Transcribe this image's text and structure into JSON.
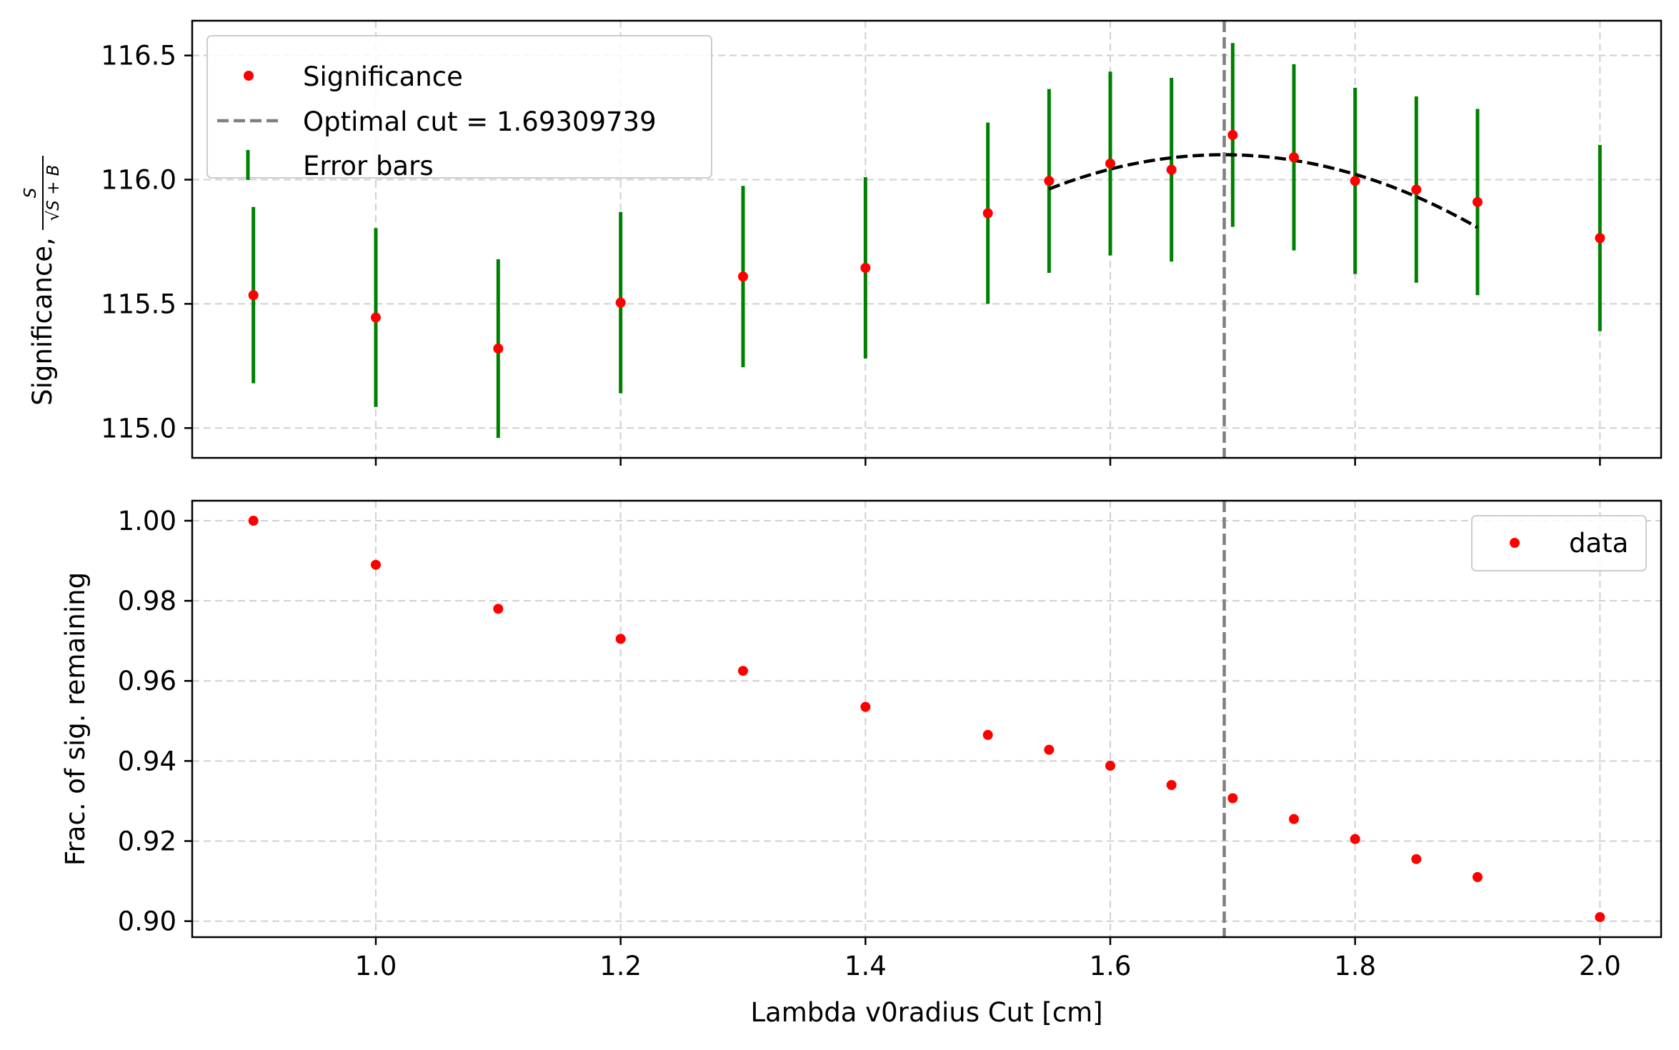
{
  "colors": {
    "points": "#ff0000",
    "errorbars": "#008000",
    "fit": "#000000",
    "cutline": "#808080",
    "grid": "#d0d0d0",
    "axes": "#000000"
  },
  "chart_data": [
    {
      "type": "scatter",
      "ylabel": "Significance,",
      "ylabel_formula": {
        "numerator": "S",
        "denominator": "√S + B"
      },
      "xlim": [
        0.85,
        2.05
      ],
      "ylim": [
        114.88,
        116.64
      ],
      "x_ticks": [
        1.0,
        1.2,
        1.4,
        1.6,
        1.8,
        2.0
      ],
      "y_ticks": [
        115.0,
        115.5,
        116.0,
        116.5
      ],
      "y_tick_labels": [
        "115.0",
        "115.5",
        "116.0",
        "116.5"
      ],
      "grid": true,
      "legend_position": "upper-left",
      "legend": [
        {
          "label": "Significance",
          "marker": "dot"
        },
        {
          "label": "Optimal cut = 1.69309739",
          "marker": "dashed-line"
        },
        {
          "label": "Error bars",
          "marker": "vertical-bar"
        }
      ],
      "optimal_cut": 1.69309739,
      "series": [
        {
          "name": "Significance",
          "x": [
            0.9,
            1.0,
            1.1,
            1.2,
            1.3,
            1.4,
            1.5,
            1.55,
            1.6,
            1.65,
            1.7,
            1.75,
            1.8,
            1.85,
            1.9,
            2.0
          ],
          "y": [
            115.535,
            115.445,
            115.32,
            115.505,
            115.61,
            115.645,
            115.865,
            115.995,
            116.065,
            116.04,
            116.18,
            116.09,
            115.995,
            115.96,
            115.91,
            115.765
          ],
          "err": [
            0.355,
            0.36,
            0.36,
            0.365,
            0.365,
            0.365,
            0.365,
            0.37,
            0.37,
            0.37,
            0.37,
            0.375,
            0.375,
            0.375,
            0.375,
            0.375
          ]
        }
      ],
      "fit": {
        "x_range": [
          1.55,
          1.9
        ],
        "coefficients": [
          -6.8,
          23.0167,
          96.6236
        ]
      }
    },
    {
      "type": "scatter",
      "xlabel": "Lambda v0radius Cut [cm]",
      "ylabel": "Frac. of sig. remaining",
      "xlim": [
        0.85,
        2.05
      ],
      "ylim": [
        0.896,
        1.005
      ],
      "x_ticks": [
        1.0,
        1.2,
        1.4,
        1.6,
        1.8,
        2.0
      ],
      "x_tick_labels": [
        "1.0",
        "1.2",
        "1.4",
        "1.6",
        "1.8",
        "2.0"
      ],
      "y_ticks": [
        0.9,
        0.92,
        0.94,
        0.96,
        0.98,
        1.0
      ],
      "y_tick_labels": [
        "0.90",
        "0.92",
        "0.94",
        "0.96",
        "0.98",
        "1.00"
      ],
      "grid": true,
      "legend_position": "upper-right",
      "legend": [
        {
          "label": "data",
          "marker": "dot"
        }
      ],
      "optimal_cut": 1.69309739,
      "series": [
        {
          "name": "data",
          "x": [
            0.9,
            1.0,
            1.1,
            1.2,
            1.3,
            1.4,
            1.5,
            1.55,
            1.6,
            1.65,
            1.7,
            1.75,
            1.8,
            1.85,
            1.9,
            2.0
          ],
          "y": [
            1.0,
            0.989,
            0.978,
            0.9705,
            0.9625,
            0.9535,
            0.9465,
            0.9428,
            0.9388,
            0.934,
            0.9307,
            0.9255,
            0.9205,
            0.9155,
            0.911,
            0.901
          ]
        }
      ]
    }
  ]
}
